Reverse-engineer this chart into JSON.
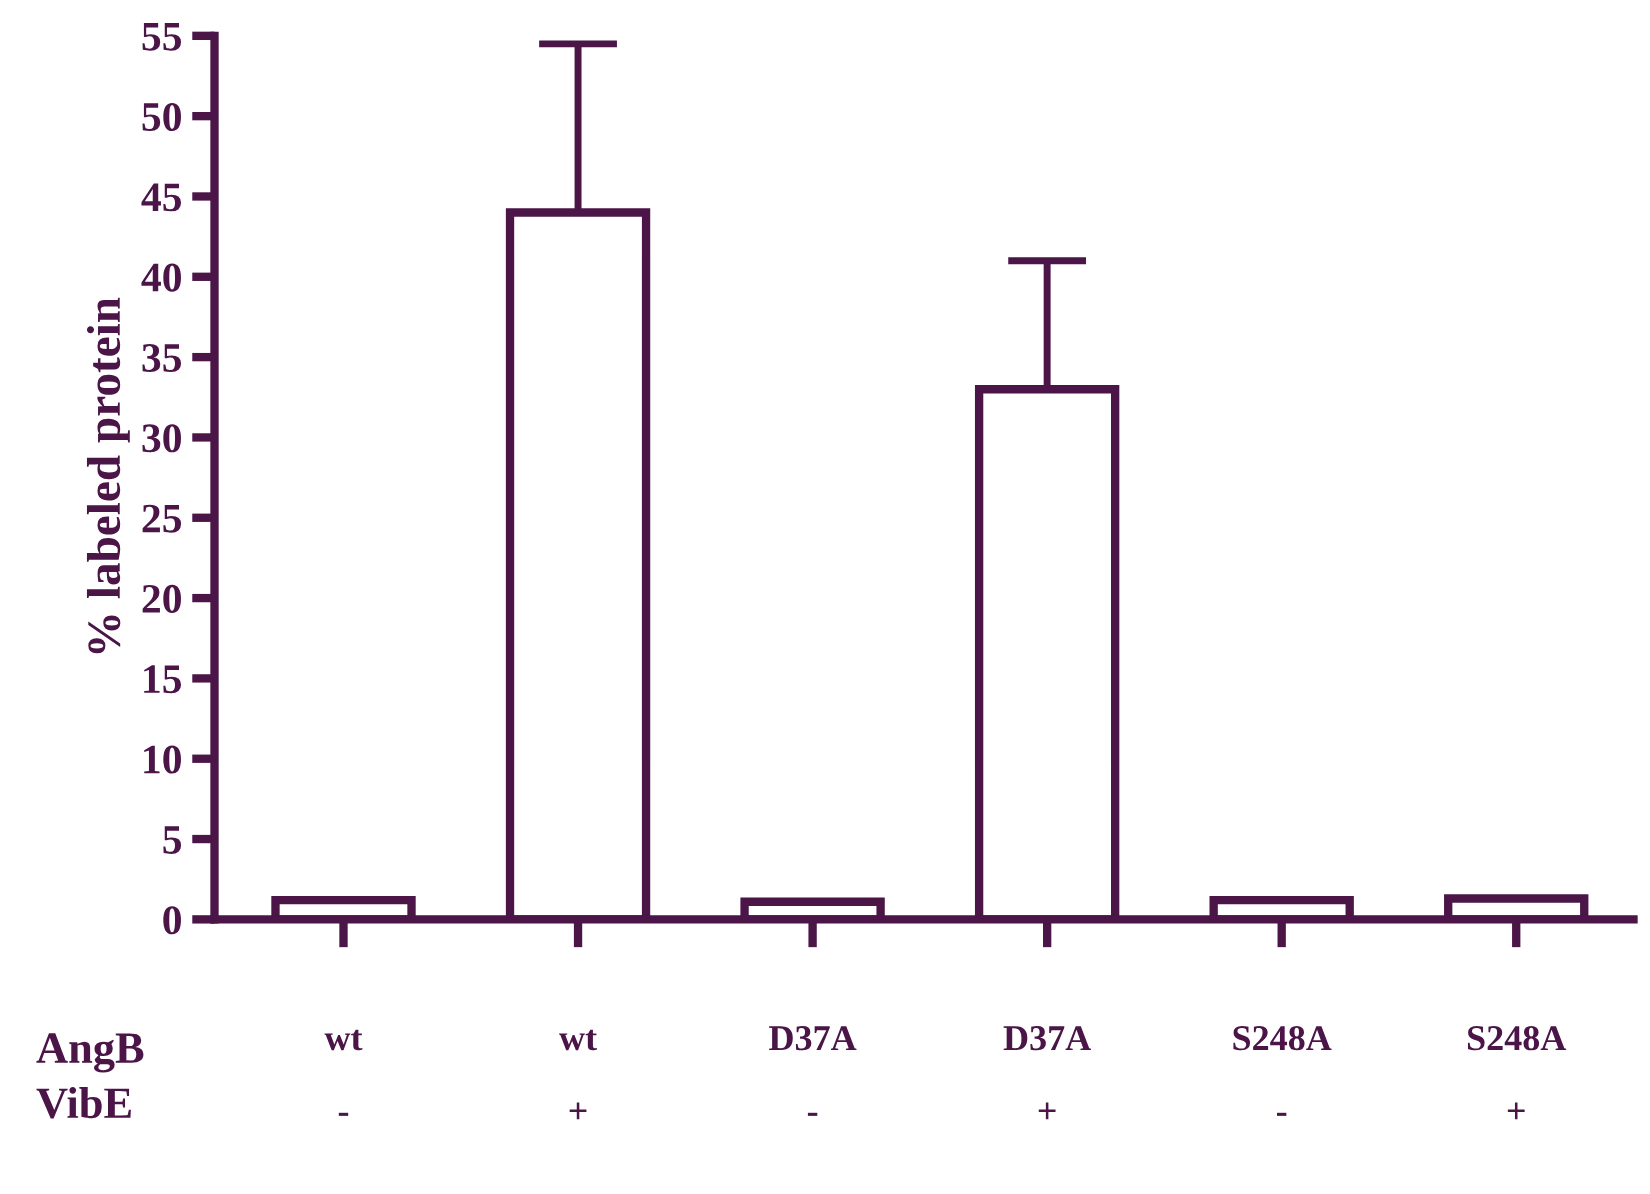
{
  "chart_data": {
    "type": "bar",
    "ylabel": "% labeled protein",
    "categories": [
      "wt\n-",
      "wt\n+",
      "D37A\n-",
      "D37A\n+",
      "S248A\n-",
      "S248A\n+"
    ],
    "values": [
      1.2,
      44,
      1.1,
      33,
      1.2,
      1.3
    ],
    "errors": [
      null,
      [
        44,
        54.5
      ],
      null,
      [
        33,
        41
      ],
      null,
      null
    ],
    "color": "#4b1548",
    "ylim": [
      0,
      55
    ],
    "yticks": [
      0,
      5,
      10,
      15,
      20,
      25,
      30,
      35,
      40,
      45,
      50,
      55
    ],
    "annotations": [
      "AngB",
      "VibE"
    ]
  }
}
